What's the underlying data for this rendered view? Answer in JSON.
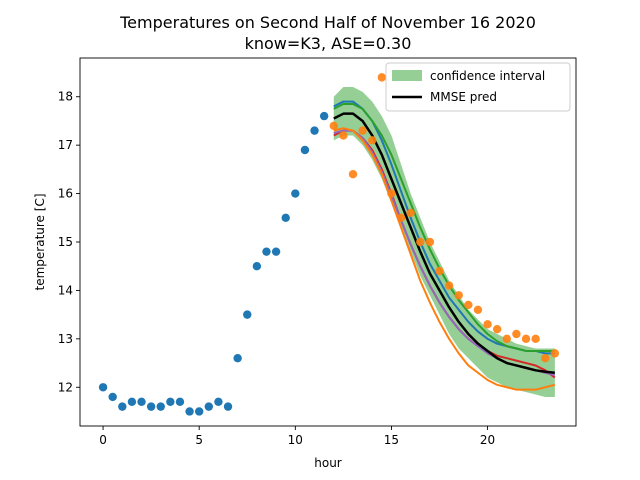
{
  "chart_data": {
    "type": "scatter",
    "title_line1": "Temperatures on Second Half of November 16 2020",
    "title_line2": "know=K3, ASE=0.30",
    "xlabel": "hour",
    "ylabel": "temperature [C]",
    "xlim": [
      -1.2,
      24.6
    ],
    "ylim": [
      11.2,
      18.8
    ],
    "xticks": [
      0,
      5,
      10,
      15,
      20
    ],
    "yticks": [
      12,
      13,
      14,
      15,
      16,
      17,
      18
    ],
    "grid": false,
    "legend_position": "top-right",
    "legend": [
      {
        "label": "confidence interval",
        "kind": "patch",
        "color": "#2ca02c"
      },
      {
        "label": "MMSE pred",
        "kind": "line",
        "color": "#000000"
      }
    ],
    "observed": {
      "color": "#1f77b4",
      "points": [
        [
          0,
          12.0
        ],
        [
          0.5,
          11.8
        ],
        [
          1,
          11.6
        ],
        [
          1.5,
          11.7
        ],
        [
          2,
          11.7
        ],
        [
          2.5,
          11.6
        ],
        [
          3,
          11.6
        ],
        [
          3.5,
          11.7
        ],
        [
          4,
          11.7
        ],
        [
          4.5,
          11.5
        ],
        [
          5,
          11.5
        ],
        [
          5.5,
          11.6
        ],
        [
          6,
          11.7
        ],
        [
          6.5,
          11.6
        ],
        [
          7,
          12.6
        ],
        [
          7.5,
          13.5
        ],
        [
          8,
          14.5
        ],
        [
          8.5,
          14.8
        ],
        [
          9,
          14.8
        ],
        [
          9.5,
          15.5
        ],
        [
          10,
          16.0
        ],
        [
          10.5,
          16.9
        ],
        [
          11,
          17.3
        ],
        [
          11.5,
          17.6
        ]
      ]
    },
    "actual": {
      "color": "#ff7f0e",
      "points": [
        [
          12,
          17.4
        ],
        [
          12.5,
          17.2
        ],
        [
          13,
          16.4
        ],
        [
          13.5,
          17.3
        ],
        [
          14,
          17.1
        ],
        [
          14.5,
          18.4
        ],
        [
          15,
          16.0
        ],
        [
          15.5,
          15.5
        ],
        [
          16,
          15.6
        ],
        [
          16.5,
          15.0
        ],
        [
          17,
          15.0
        ],
        [
          17.5,
          14.4
        ],
        [
          18,
          14.1
        ],
        [
          18.5,
          13.9
        ],
        [
          19,
          13.7
        ],
        [
          19.5,
          13.6
        ],
        [
          20,
          13.3
        ],
        [
          20.5,
          13.2
        ],
        [
          21,
          13.0
        ],
        [
          21.5,
          13.1
        ],
        [
          22,
          13.0
        ],
        [
          22.5,
          13.0
        ],
        [
          23,
          12.6
        ],
        [
          23.5,
          12.7
        ]
      ]
    },
    "forecast_x": [
      12,
      12.5,
      13,
      13.5,
      14,
      14.5,
      15,
      15.5,
      16,
      16.5,
      17,
      17.5,
      18,
      18.5,
      19,
      19.5,
      20,
      20.5,
      21,
      21.5,
      22,
      22.5,
      23,
      23.5
    ],
    "confidence_interval": {
      "color": "#2ca02c",
      "lower": [
        17.1,
        17.2,
        17.2,
        17.0,
        16.7,
        16.3,
        15.8,
        15.3,
        14.8,
        14.3,
        13.9,
        13.5,
        13.1,
        12.8,
        12.6,
        12.4,
        12.2,
        12.1,
        12.0,
        11.95,
        11.9,
        11.85,
        11.8,
        11.8
      ],
      "upper": [
        18.0,
        18.2,
        18.2,
        18.1,
        17.9,
        17.6,
        17.2,
        16.6,
        16.0,
        15.5,
        15.0,
        14.6,
        14.2,
        13.9,
        13.6,
        13.4,
        13.2,
        13.1,
        13.0,
        12.9,
        12.85,
        12.8,
        12.8,
        12.8
      ]
    },
    "mmse_pred": {
      "color": "#000000",
      "values": [
        17.55,
        17.65,
        17.65,
        17.5,
        17.2,
        16.8,
        16.3,
        15.8,
        15.3,
        14.8,
        14.35,
        14.0,
        13.65,
        13.35,
        13.1,
        12.9,
        12.75,
        12.6,
        12.5,
        12.45,
        12.4,
        12.35,
        12.32,
        12.3
      ]
    },
    "samples": [
      {
        "color": "#1f77b4",
        "values": [
          17.8,
          17.9,
          17.9,
          17.75,
          17.5,
          17.1,
          16.6,
          16.05,
          15.5,
          15.0,
          14.55,
          14.2,
          13.85,
          13.6,
          13.35,
          13.15,
          13.0,
          12.9,
          12.85,
          12.8,
          12.75,
          12.75,
          12.7,
          12.7
        ]
      },
      {
        "color": "#2ca02c",
        "values": [
          17.75,
          17.85,
          17.85,
          17.75,
          17.5,
          17.2,
          16.8,
          16.3,
          15.8,
          15.3,
          14.85,
          14.45,
          14.1,
          13.8,
          13.55,
          13.3,
          13.1,
          12.95,
          12.85,
          12.8,
          12.75,
          12.75,
          12.75,
          12.75
        ]
      },
      {
        "color": "#d62728",
        "values": [
          17.2,
          17.3,
          17.3,
          17.15,
          16.9,
          16.5,
          16.0,
          15.45,
          14.95,
          14.5,
          14.1,
          13.75,
          13.45,
          13.2,
          13.0,
          12.85,
          12.75,
          12.65,
          12.6,
          12.55,
          12.5,
          12.45,
          12.35,
          12.2
        ]
      },
      {
        "color": "#9467bd",
        "values": [
          17.25,
          17.3,
          17.3,
          17.15,
          16.85,
          16.45,
          15.95,
          15.45,
          14.95,
          14.5,
          14.1,
          13.75,
          13.45,
          13.2,
          13.0,
          12.85,
          12.7,
          12.6,
          12.5,
          12.45,
          12.4,
          12.35,
          12.3,
          12.25
        ]
      },
      {
        "color": "#ff7f0e",
        "values": [
          17.3,
          17.35,
          17.3,
          17.1,
          16.8,
          16.4,
          15.85,
          15.3,
          14.75,
          14.2,
          13.75,
          13.35,
          13.0,
          12.7,
          12.45,
          12.3,
          12.15,
          12.05,
          12.0,
          11.95,
          11.95,
          11.95,
          12.0,
          12.05
        ]
      }
    ]
  }
}
